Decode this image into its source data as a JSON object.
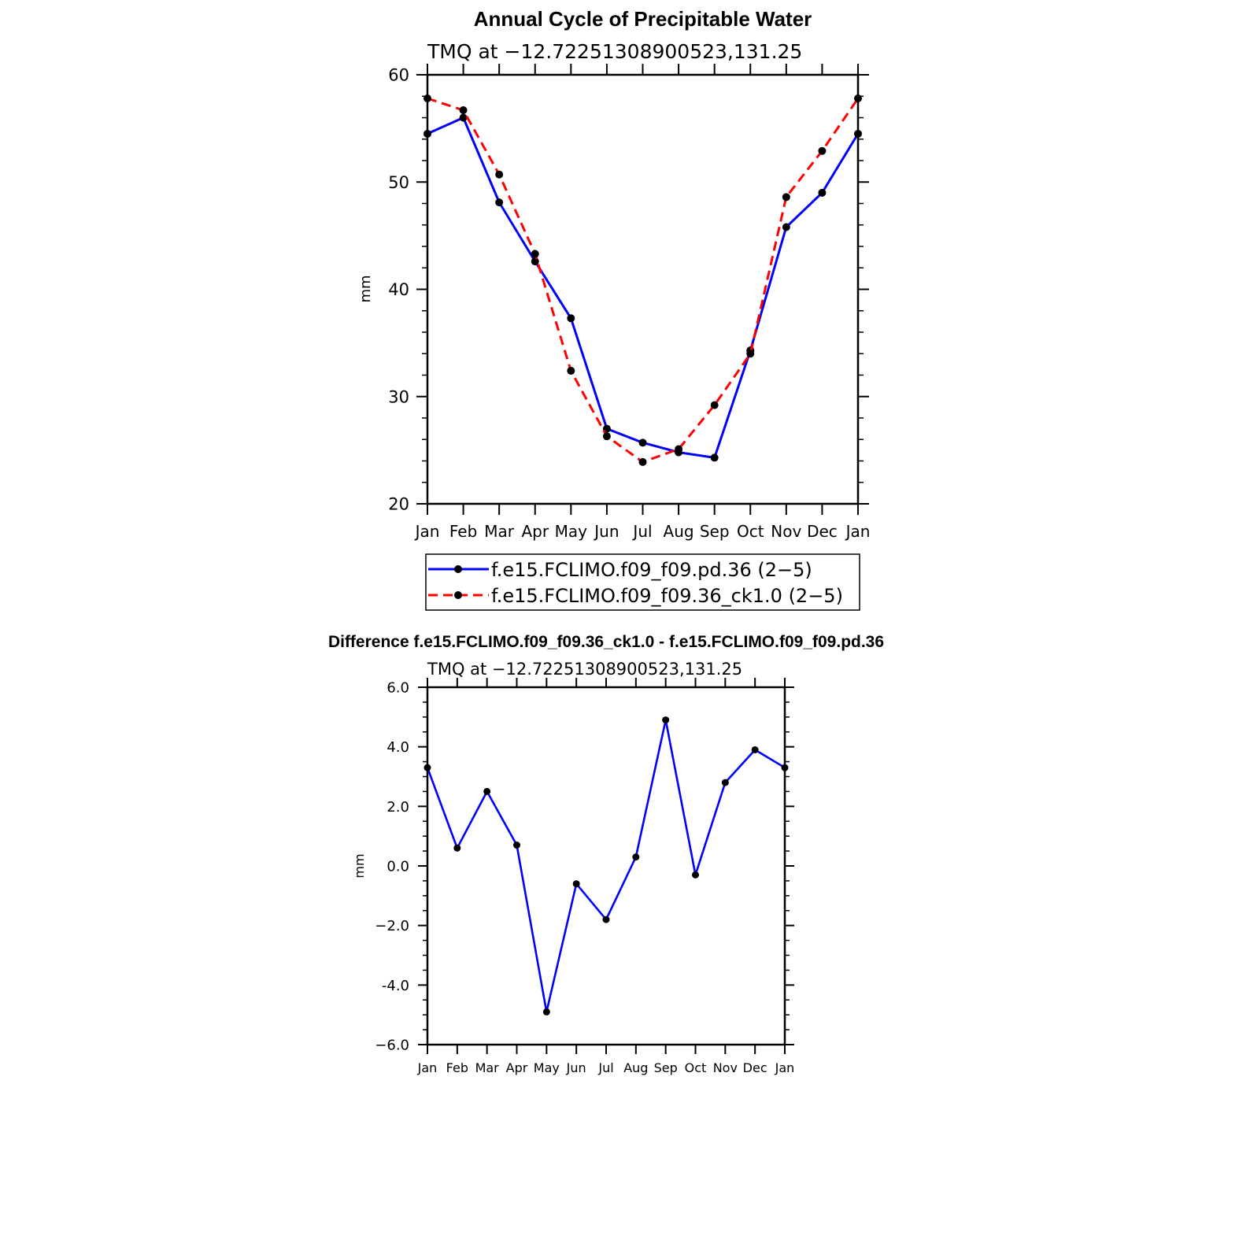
{
  "chart_data": [
    {
      "type": "line",
      "title": "Annual Cycle of Precipitable Water",
      "subtitle": "TMQ at −12.72251308900523,131.25",
      "xlabel": "",
      "ylabel": "mm",
      "ylim": [
        20,
        60
      ],
      "y_ticks": [
        "20",
        "30",
        "40",
        "50",
        "60"
      ],
      "categories": [
        "Jan",
        "Feb",
        "Mar",
        "Apr",
        "May",
        "Jun",
        "Jul",
        "Aug",
        "Sep",
        "Oct",
        "Nov",
        "Dec",
        "Jan"
      ],
      "grid": false,
      "legend_position": "bottom",
      "series": [
        {
          "name": "f.e15.FCLIMO.f09_f09.pd.36 (2−5)",
          "color": "#0000ff",
          "dash": "solid",
          "values": [
            54.5,
            56.0,
            48.1,
            42.6,
            37.3,
            27.0,
            25.7,
            24.8,
            24.3,
            34.3,
            45.8,
            49.0,
            54.5
          ]
        },
        {
          "name": "f.e15.FCLIMO.f09_f09.36_ck1.0 (2−5)",
          "color": "#ff0000",
          "dash": "dashed",
          "values": [
            57.8,
            56.7,
            50.7,
            43.3,
            32.4,
            26.3,
            23.9,
            25.1,
            29.2,
            34.0,
            48.6,
            52.9,
            57.8
          ]
        }
      ]
    },
    {
      "type": "line",
      "title": "Difference f.e15.FCLIMO.f09_f09.36_ck1.0 - f.e15.FCLIMO.f09_f09.pd.36",
      "subtitle": "TMQ at −12.72251308900523,131.25",
      "xlabel": "",
      "ylabel": "mm",
      "ylim": [
        -6,
        6
      ],
      "y_ticks": [
        "−6.0",
        "-4.0",
        "−2.0",
        "0.0",
        "2.0",
        "4.0",
        "6.0"
      ],
      "categories": [
        "Jan",
        "Feb",
        "Mar",
        "Apr",
        "May",
        "Jun",
        "Jul",
        "Aug",
        "Sep",
        "Oct",
        "Nov",
        "Dec",
        "Jan"
      ],
      "grid": false,
      "series": [
        {
          "name": "difference",
          "color": "#0000ff",
          "dash": "solid",
          "values": [
            3.3,
            0.6,
            2.5,
            0.7,
            -4.9,
            -0.6,
            -1.8,
            0.3,
            4.9,
            -0.3,
            2.8,
            3.9,
            3.3
          ]
        }
      ]
    }
  ]
}
